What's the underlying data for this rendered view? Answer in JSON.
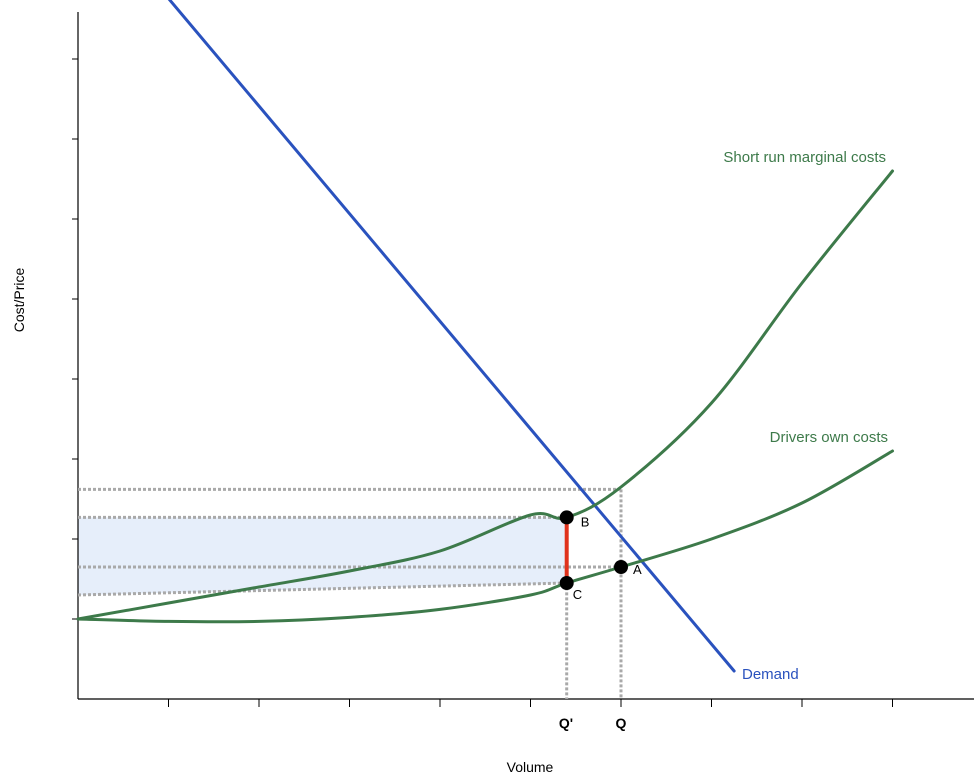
{
  "chart_data": {
    "type": "line",
    "title": "",
    "xlabel": "Volume",
    "ylabel": "Cost/Price",
    "xlim": [
      0,
      10
    ],
    "ylim": [
      0,
      10
    ],
    "grid": false,
    "series": [
      {
        "name": "Demand",
        "color": "#2a52be",
        "x": [
          0.15,
          7.25
        ],
        "y": [
          9.9,
          0.35
        ]
      },
      {
        "name": "Short run marginal costs",
        "color": "#3d7a4a",
        "x": [
          0,
          1,
          2,
          3,
          4,
          5,
          5.4,
          6,
          7,
          8,
          9
        ],
        "y": [
          1.0,
          1.2,
          1.4,
          1.6,
          1.85,
          2.3,
          2.27,
          2.65,
          3.7,
          5.2,
          6.6
        ]
      },
      {
        "name": "Drivers own costs",
        "color": "#3d7a4a",
        "x": [
          0,
          1,
          2,
          3,
          4,
          5,
          5.4,
          6,
          7,
          8,
          9
        ],
        "y": [
          1.0,
          0.97,
          0.97,
          1.02,
          1.12,
          1.3,
          1.45,
          1.65,
          2.0,
          2.45,
          3.1
        ]
      }
    ],
    "points": [
      {
        "label": "A",
        "x": 6.0,
        "y": 1.65
      },
      {
        "label": "B",
        "x": 5.4,
        "y": 2.27
      },
      {
        "label": "C",
        "x": 5.4,
        "y": 1.45
      }
    ],
    "reference_lines": {
      "vertical": [
        5.4,
        6.0
      ],
      "horizontal": [
        2.62,
        2.27,
        1.65,
        1.45
      ]
    },
    "x_markers": [
      {
        "label": "Q'",
        "x": 5.4
      },
      {
        "label": "Q",
        "x": 6.0
      }
    ],
    "x_ticks": [
      1,
      2,
      3,
      4,
      5,
      6,
      7,
      8,
      9
    ],
    "y_ticks": [
      1,
      2,
      3,
      4,
      5,
      6,
      7,
      8
    ],
    "highlight_band": {
      "color": "#e6eefa",
      "y_top": 2.27,
      "y_bottom_left": 1.3,
      "y_bottom_right": 1.45,
      "x_right": 5.4
    },
    "wedge_segment": {
      "color": "#e0321c",
      "x": 5.4,
      "y_from": 1.45,
      "y_to": 2.27
    }
  }
}
